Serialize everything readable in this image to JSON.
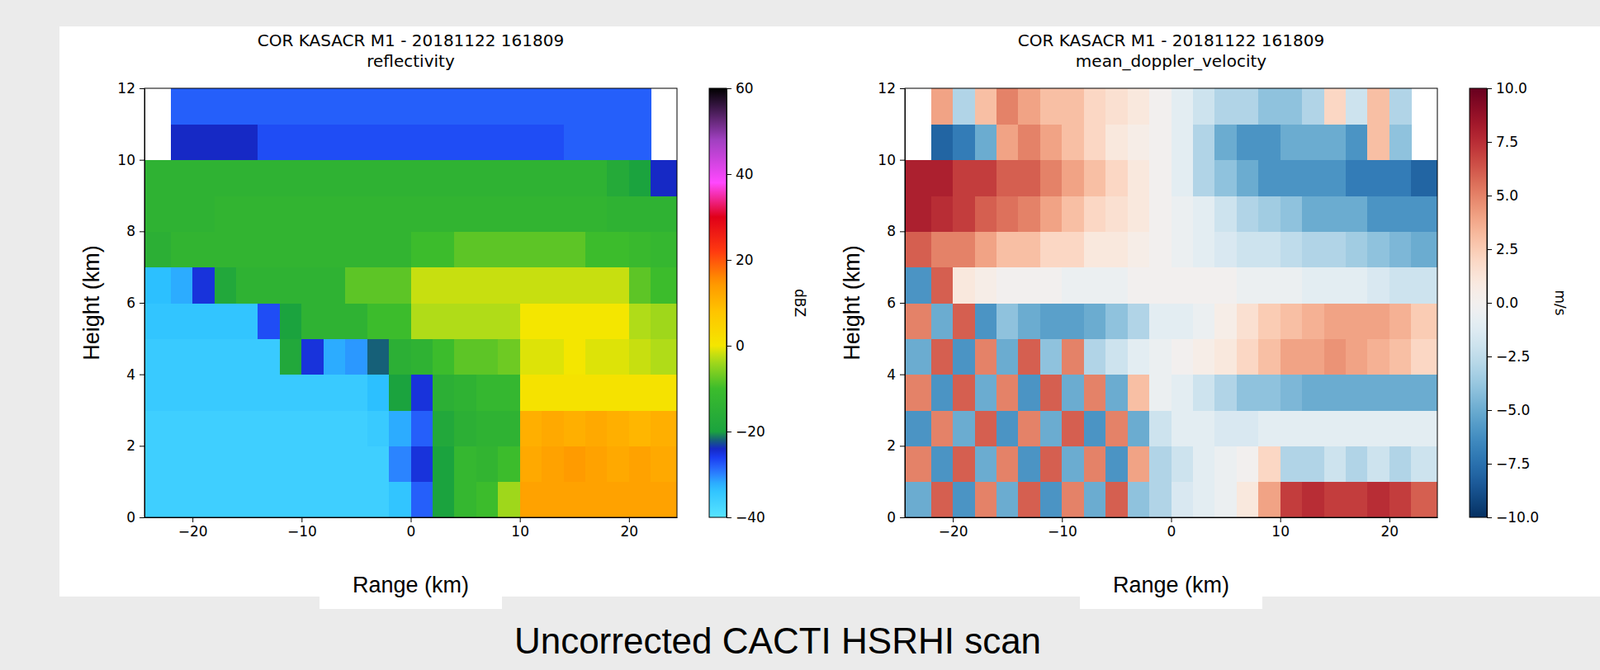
{
  "chart_data": [
    {
      "type": "heatmap",
      "title": "COR KASACR M1 - 20181122 161809",
      "subtitle": "reflectivity",
      "xlabel": "Range (km)",
      "ylabel": "Height (km)",
      "xlim": [
        -24.4,
        24.4
      ],
      "ylim": [
        0,
        12
      ],
      "xticks": [
        {
          "value": -20,
          "label": "−20"
        },
        {
          "value": -10,
          "label": "−10"
        },
        0,
        10,
        20
      ],
      "yticks": [
        0,
        2,
        4,
        6,
        8,
        10,
        12
      ],
      "xbins": [
        -24.4,
        -22,
        -20,
        -18,
        -16,
        -14,
        -12,
        -10,
        -8,
        -6,
        -4,
        -2,
        0,
        2,
        4,
        6,
        8,
        10,
        12,
        14,
        16,
        18,
        20,
        22,
        24.4
      ],
      "ybins": [
        0,
        1,
        2,
        3,
        4,
        5,
        6,
        7,
        8,
        9,
        10,
        11,
        12
      ],
      "values": [
        [
          -36,
          -36,
          -36,
          -36,
          -36,
          -36,
          -36,
          -36,
          -36,
          -36,
          -36,
          -34,
          -28,
          -20,
          -12,
          -10,
          -4,
          13,
          13,
          13,
          13,
          13,
          13,
          13
        ],
        [
          -36,
          -36,
          -36,
          -36,
          -36,
          -36,
          -36,
          -36,
          -36,
          -36,
          -36,
          -30,
          -25,
          -20,
          -12,
          -13,
          -10,
          12,
          13,
          14,
          13,
          12,
          13,
          12
        ],
        [
          -36,
          -36,
          -36,
          -36,
          -36,
          -36,
          -36,
          -36,
          -36,
          -36,
          -35,
          -32,
          -28,
          -18,
          -15,
          -14,
          -14,
          11,
          12,
          11,
          12,
          11,
          10,
          11
        ],
        [
          -35,
          -35,
          -35,
          -35,
          -35,
          -35,
          -35,
          -35,
          -35,
          -35,
          -33,
          -20,
          -25,
          -15,
          -14,
          -12,
          -12,
          1,
          1,
          1,
          1,
          1,
          1,
          1
        ],
        [
          -35,
          -35,
          -35,
          -35,
          -35,
          -35,
          -18,
          -25,
          -32,
          -31,
          -22,
          -15,
          -14,
          -10,
          -8,
          -8,
          -7,
          -1,
          -1,
          0,
          -1,
          -1,
          -2,
          -3
        ],
        [
          -34,
          -34,
          -34,
          -34,
          -34,
          -27,
          -20,
          -14,
          -14,
          -14,
          -10,
          -10,
          -3,
          -3,
          -3,
          -3,
          -3,
          0,
          0,
          0,
          0,
          0,
          -3,
          -4
        ],
        [
          -33,
          -32,
          -25,
          -18,
          -14,
          -14,
          -14,
          -14,
          -14,
          -8,
          -8,
          -8,
          -2,
          -2,
          -2,
          -2,
          -2,
          -2,
          -2,
          -2,
          -2,
          -2,
          -8,
          -10
        ],
        [
          -15,
          -13,
          -13,
          -13,
          -13,
          -13,
          -13,
          -13,
          -13,
          -13,
          -13,
          -13,
          -10,
          -10,
          -8,
          -8,
          -8,
          -8,
          -8,
          -8,
          -10,
          -10,
          -11,
          -12
        ],
        [
          -14,
          -14,
          -14,
          -13,
          -13,
          -13,
          -13,
          -13,
          -13,
          -13,
          -13,
          -13,
          -13,
          -13,
          -13,
          -13,
          -13,
          -13,
          -13,
          -13,
          -13,
          -14,
          -14,
          -14
        ],
        [
          -14,
          -14,
          -14,
          -14,
          -14,
          -14,
          -14,
          -14,
          -14,
          -14,
          -14,
          -14,
          -14,
          -14,
          -14,
          -14,
          -14,
          -14,
          -14,
          -14,
          -14,
          -17,
          -20,
          -24
        ],
        [
          null,
          -24,
          -24,
          -24,
          -24,
          -27,
          -27,
          -27,
          -27,
          -27,
          -27,
          -27,
          -27,
          -27,
          -27,
          -27,
          -27,
          -27,
          -27,
          -28,
          -28,
          -28,
          -28,
          null
        ],
        [
          null,
          -28,
          -28,
          -28,
          -28,
          -28,
          -28,
          -28,
          -28,
          -28,
          -28,
          -28,
          -28,
          -28,
          -28,
          -28,
          -28,
          -28,
          -28,
          -28,
          -28,
          -28,
          -28,
          null
        ]
      ],
      "colorbar_label": "dBZ",
      "colorbar_lim": [
        -40,
        60
      ],
      "colorbar_ticks": [
        {
          "value": -40,
          "label": "−40"
        },
        {
          "value": -20,
          "label": "−20"
        },
        0,
        20,
        40,
        60
      ]
    },
    {
      "type": "heatmap",
      "title": "COR KASACR M1 - 20181122 161809",
      "subtitle": "mean_doppler_velocity",
      "xlabel": "Range (km)",
      "ylabel": "Height (km)",
      "xlim": [
        -24.4,
        24.4
      ],
      "ylim": [
        0,
        12
      ],
      "xticks": [
        {
          "value": -20,
          "label": "−20"
        },
        {
          "value": -10,
          "label": "−10"
        },
        0,
        10,
        20
      ],
      "yticks": [
        0,
        2,
        4,
        6,
        8,
        10,
        12
      ],
      "xbins": [
        -24.4,
        -22,
        -20,
        -18,
        -16,
        -14,
        -12,
        -10,
        -8,
        -6,
        -4,
        -2,
        0,
        2,
        4,
        6,
        8,
        10,
        12,
        14,
        16,
        18,
        20,
        22,
        24.4
      ],
      "ybins": [
        0,
        1,
        2,
        3,
        4,
        5,
        6,
        7,
        8,
        9,
        10,
        11,
        12
      ],
      "values": [
        [
          -5,
          6,
          -6,
          5,
          -5,
          6,
          -6,
          5,
          -5,
          6,
          -4,
          -3,
          -1.5,
          -1,
          -0.5,
          1,
          4,
          7,
          7.5,
          7,
          7,
          7.5,
          7,
          6
        ],
        [
          5,
          -6,
          6,
          -5,
          5,
          -6,
          6,
          -5,
          5,
          -6,
          4,
          -3,
          -2,
          -1,
          -0.5,
          0,
          2,
          -3,
          -3,
          -2,
          -3,
          -2,
          -3,
          -2
        ],
        [
          -6,
          5,
          -5,
          6,
          -6,
          5,
          -5,
          6,
          -6,
          5,
          -5,
          -2,
          -1,
          -1,
          -1.5,
          -1.5,
          -1,
          -1,
          -1,
          -1,
          -1,
          -1,
          -1,
          -1
        ],
        [
          5,
          -6,
          6,
          -5,
          5,
          -6,
          6,
          -5,
          5,
          -5,
          3,
          -0.5,
          -1,
          -2,
          -3,
          -4,
          -4,
          -4.5,
          -5,
          -5,
          -5,
          -5,
          -5,
          -5
        ],
        [
          -5,
          6,
          -6,
          5,
          -5,
          6,
          -4,
          5,
          -3,
          -2,
          -1,
          -0.5,
          0,
          0.5,
          1,
          2,
          3,
          4,
          4,
          4.5,
          4,
          3.5,
          3,
          2
        ],
        [
          5,
          -5,
          6,
          -6,
          -4,
          -5,
          -5.5,
          -5.5,
          -5,
          -4,
          -3,
          -1,
          -1,
          -0.5,
          0.5,
          1.5,
          2.5,
          3,
          3.5,
          4,
          4,
          4,
          3.5,
          2.5
        ],
        [
          -6,
          6,
          1,
          0.5,
          0,
          0,
          0,
          -0.5,
          -0.5,
          -0.5,
          0,
          0,
          0,
          0,
          0,
          -0.5,
          -0.5,
          -0.5,
          -1,
          -1,
          -1,
          -1.5,
          -2,
          -2
        ],
        [
          6,
          5,
          5,
          4,
          3,
          3,
          2,
          2,
          1,
          1,
          0.5,
          0,
          -0.5,
          -1,
          -1.5,
          -2,
          -2,
          -2.5,
          -3,
          -3,
          -3.5,
          -4,
          -4.5,
          -5
        ],
        [
          8,
          7.5,
          7,
          6,
          5.5,
          5,
          4,
          3,
          2,
          1.5,
          1,
          0,
          -0.5,
          -1,
          -2,
          -3,
          -3.5,
          -4,
          -5,
          -5,
          -5,
          -6,
          -6,
          -6
        ],
        [
          8,
          8,
          7,
          7,
          6,
          6,
          5,
          4,
          3,
          2,
          1,
          0,
          -1,
          -3,
          -4,
          -5,
          -6,
          -6,
          -6,
          -6,
          -7,
          -7,
          -7,
          -8
        ],
        [
          null,
          -8,
          -7,
          -5,
          4,
          5,
          4,
          3,
          2,
          1,
          0.5,
          0,
          -1,
          -3,
          -5,
          -6,
          -6,
          -5,
          -5,
          -5,
          -6,
          3,
          -4,
          null
        ],
        [
          null,
          4,
          -3,
          3,
          5,
          4,
          3,
          3,
          2,
          1.5,
          1,
          0,
          -1,
          -2,
          -3,
          -3,
          -4,
          -4,
          -3,
          2,
          -2,
          3,
          -3,
          null
        ]
      ],
      "colorbar_label": "m/s",
      "colorbar_lim": [
        -10,
        10
      ],
      "colorbar_ticks": [
        {
          "value": -10,
          "label": "−10.0"
        },
        {
          "value": -7.5,
          "label": "−7.5"
        },
        {
          "value": -5,
          "label": "−5.0"
        },
        {
          "value": -2.5,
          "label": "−2.5"
        },
        {
          "value": 0,
          "label": "0.0"
        },
        2.5,
        {
          "value": 5,
          "label": "5.0"
        },
        7.5,
        {
          "value": 10,
          "label": "10.0"
        }
      ]
    }
  ],
  "caption": "Uncorrected CACTI HSRHI scan"
}
